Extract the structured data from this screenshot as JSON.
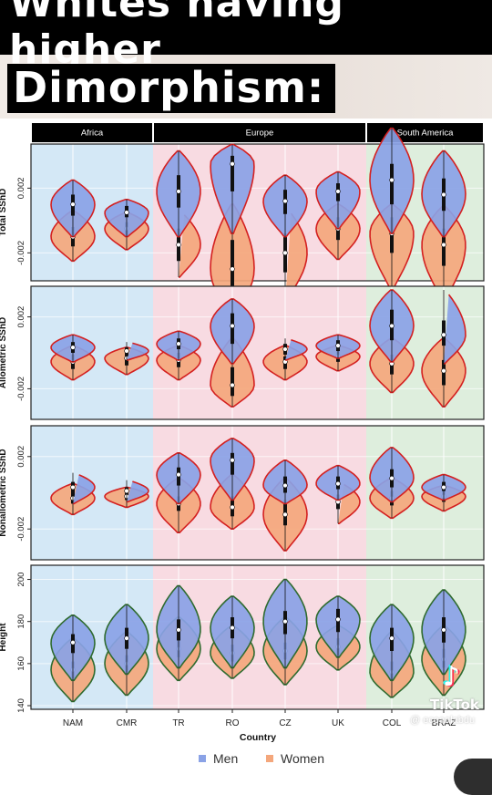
{
  "header": {
    "title_line1": "Whites having higher",
    "title_line2": "Dimorphism:"
  },
  "colors": {
    "men": "#8aa2e6",
    "women": "#f4a77c",
    "red_outline": "#d42020",
    "green_outline": "#2f6b2f",
    "africa_bg": "#d4e8f6",
    "europe_bg": "#f8dbe2",
    "south_america_bg": "#deeedd"
  },
  "watermark": {
    "tiktok_logo": "music-note-icon",
    "tiktok_name": "TikTok",
    "tiktok_user": "@ ecoaalabdu"
  },
  "chart_data": {
    "type": "violin",
    "regions": [
      {
        "name": "Africa",
        "countries": [
          "NAM",
          "CMR"
        ]
      },
      {
        "name": "Europe",
        "countries": [
          "TR",
          "RO",
          "CZ",
          "UK"
        ]
      },
      {
        "name": "South America",
        "countries": [
          "COL",
          "BRAZ"
        ]
      }
    ],
    "categories": [
      "NAM",
      "CMR",
      "TR",
      "RO",
      "CZ",
      "UK",
      "COL",
      "BRAZ"
    ],
    "xlabel": "Country",
    "legend": {
      "position": "bottom",
      "entries": [
        "Men",
        "Women"
      ]
    },
    "panels": [
      {
        "ylabel": "Total SShD",
        "ylim": [
          -0.0035,
          0.0045
        ],
        "ticks": [
          -0.002,
          0.002
        ],
        "tick_labels": [
          "-0.002",
          "0.002"
        ],
        "series": [
          {
            "name": "Men",
            "min": [
              -0.001,
              -0.001,
              -0.001,
              -0.0008,
              -0.001,
              -0.0005,
              -0.0008,
              -0.001
            ],
            "max": [
              0.0025,
              0.0013,
              0.0043,
              0.0047,
              0.0028,
              0.003,
              0.0057,
              0.0043
            ],
            "median": [
              0.001,
              0.0005,
              0.0018,
              0.0035,
              0.0012,
              0.0018,
              0.0025,
              0.0016
            ],
            "q1": [
              0.0003,
              0.0002,
              0.0008,
              0.0018,
              0.0004,
              0.0012,
              0.001,
              0.0006
            ],
            "q3": [
              0.0016,
              0.0009,
              0.0028,
              0.004,
              0.0019,
              0.0023,
              0.0035,
              0.0026
            ]
          },
          {
            "name": "Women",
            "min": [
              -0.0025,
              -0.0018,
              -0.0035,
              -0.006,
              -0.005,
              -0.0024,
              -0.0043,
              -0.005
            ],
            "max": [
              0.0006,
              0.0005,
              0.0006,
              0.001,
              0.0008,
              0.001,
              0.001,
              0.0009
            ],
            "median": [
              -0.001,
              -0.0005,
              -0.0015,
              -0.003,
              -0.002,
              -0.0005,
              -0.0008,
              -0.0015
            ],
            "q1": [
              -0.0016,
              -0.001,
              -0.0025,
              -0.0042,
              -0.0032,
              -0.0012,
              -0.002,
              -0.0028
            ],
            "q3": [
              -0.0004,
              -0.0001,
              -0.0005,
              -0.0012,
              -0.0008,
              0.0002,
              0.0002,
              -0.0005
            ]
          }
        ]
      },
      {
        "ylabel": "Allometric SShD",
        "ylim": [
          -0.0035,
          0.0035
        ],
        "ticks": [
          -0.002,
          0.002
        ],
        "tick_labels": [
          "-0.002",
          "0.002"
        ],
        "series": [
          {
            "name": "Men",
            "min": [
              -0.0005,
              -0.0004,
              -0.0004,
              -0.0006,
              -0.0004,
              -0.0003,
              -0.0005,
              -0.0006
            ],
            "max": [
              0.001,
              0.0006,
              0.0012,
              0.003,
              0.0008,
              0.001,
              0.0035,
              0.0035
            ],
            "median": [
              0.0003,
              0.0001,
              0.0005,
              0.0015,
              0.0002,
              0.0004,
              0.0015,
              0.001
            ],
            "q1": [
              0.0,
              -0.0001,
              0.0002,
              0.0005,
              -0.0001,
              0.0001,
              0.0007,
              0.0004
            ],
            "q3": [
              0.0006,
              0.0003,
              0.0008,
              0.0022,
              0.0005,
              0.0007,
              0.0024,
              0.0018
            ]
          },
          {
            "name": "Women",
            "min": [
              -0.0015,
              -0.0012,
              -0.0015,
              -0.003,
              -0.0015,
              -0.001,
              -0.0022,
              -0.003
            ],
            "max": [
              0.0004,
              0.0003,
              0.0004,
              0.0008,
              0.0004,
              0.0004,
              0.0008,
              0.0008
            ],
            "median": [
              -0.0005,
              -0.0003,
              -0.0004,
              -0.0018,
              -0.0005,
              -0.0002,
              -0.0006,
              -0.001
            ],
            "q1": [
              -0.0009,
              -0.0007,
              -0.0008,
              -0.0024,
              -0.0009,
              -0.0005,
              -0.0012,
              -0.0018
            ],
            "q3": [
              -0.0001,
              0.0,
              0.0,
              -0.0008,
              -0.0002,
              0.0001,
              -0.0001,
              -0.0004
            ]
          }
        ]
      },
      {
        "ylabel": "Nonallometric SShD",
        "ylim": [
          -0.0035,
          0.0035
        ],
        "ticks": [
          -0.002,
          0.002
        ],
        "tick_labels": [
          "-0.002",
          "0.002"
        ],
        "series": [
          {
            "name": "Men",
            "min": [
              -0.0006,
              -0.0005,
              -0.0006,
              -0.0004,
              -0.0006,
              -0.0004,
              -0.0005,
              -0.0004
            ],
            "max": [
              0.0011,
              0.0007,
              0.0022,
              0.003,
              0.0018,
              0.0015,
              0.0025,
              0.001
            ],
            "median": [
              0.0003,
              0.0001,
              0.001,
              0.0018,
              0.0004,
              0.0005,
              0.0008,
              0.0003
            ],
            "q1": [
              0.0,
              -0.0001,
              0.0004,
              0.001,
              0.0,
              0.0002,
              0.0003,
              0.0001
            ],
            "q3": [
              0.0006,
              0.0003,
              0.0014,
              0.0022,
              0.0009,
              0.0009,
              0.0013,
              0.0006
            ]
          },
          {
            "name": "Women",
            "min": [
              -0.0012,
              -0.0008,
              -0.0022,
              -0.002,
              -0.0032,
              -0.0017,
              -0.0014,
              -0.001
            ],
            "max": [
              0.0005,
              0.0003,
              0.0008,
              0.001,
              0.0008,
              0.0006,
              0.0008,
              0.0004
            ],
            "median": [
              -0.0003,
              -0.0002,
              -0.0006,
              -0.0008,
              -0.0012,
              -0.0005,
              -0.0003,
              -0.0002
            ],
            "q1": [
              -0.0006,
              -0.0004,
              -0.001,
              -0.0013,
              -0.0018,
              -0.0009,
              -0.0007,
              -0.0005
            ],
            "q3": [
              0.0,
              0.0,
              -0.0002,
              -0.0002,
              -0.0004,
              -0.0001,
              0.0001,
              0.0001
            ]
          }
        ]
      },
      {
        "ylabel": "Height",
        "ylim": [
          140,
          205
        ],
        "ticks": [
          140,
          160,
          180,
          200
        ],
        "tick_labels": [
          "140",
          "160",
          "180",
          "200"
        ],
        "series": [
          {
            "name": "Men",
            "min": [
              152,
              155,
              158,
              158,
              158,
              163,
              152,
              155
            ],
            "max": [
              183,
              188,
              197,
              192,
              200,
              192,
              188,
              195
            ],
            "median": [
              170,
              172,
              176,
              177,
              180,
              181,
              172,
              176
            ],
            "q1": [
              165,
              167,
              171,
              172,
              174,
              175,
              166,
              170
            ],
            "q3": [
              174,
              177,
              181,
              182,
              185,
              186,
              177,
              182
            ]
          },
          {
            "name": "Women",
            "min": [
              142,
              145,
              152,
              153,
              150,
              157,
              144,
              145
            ],
            "max": [
              172,
              175,
              182,
              178,
              182,
              178,
              175,
              178
            ],
            "median": [
              157,
              160,
              167,
              165,
              166,
              168,
              156,
              162
            ],
            "q1": [
              153,
              156,
              163,
              161,
              162,
              164,
              152,
              158
            ],
            "q3": [
              161,
              164,
              171,
              169,
              170,
              172,
              161,
              167
            ]
          }
        ]
      }
    ]
  }
}
